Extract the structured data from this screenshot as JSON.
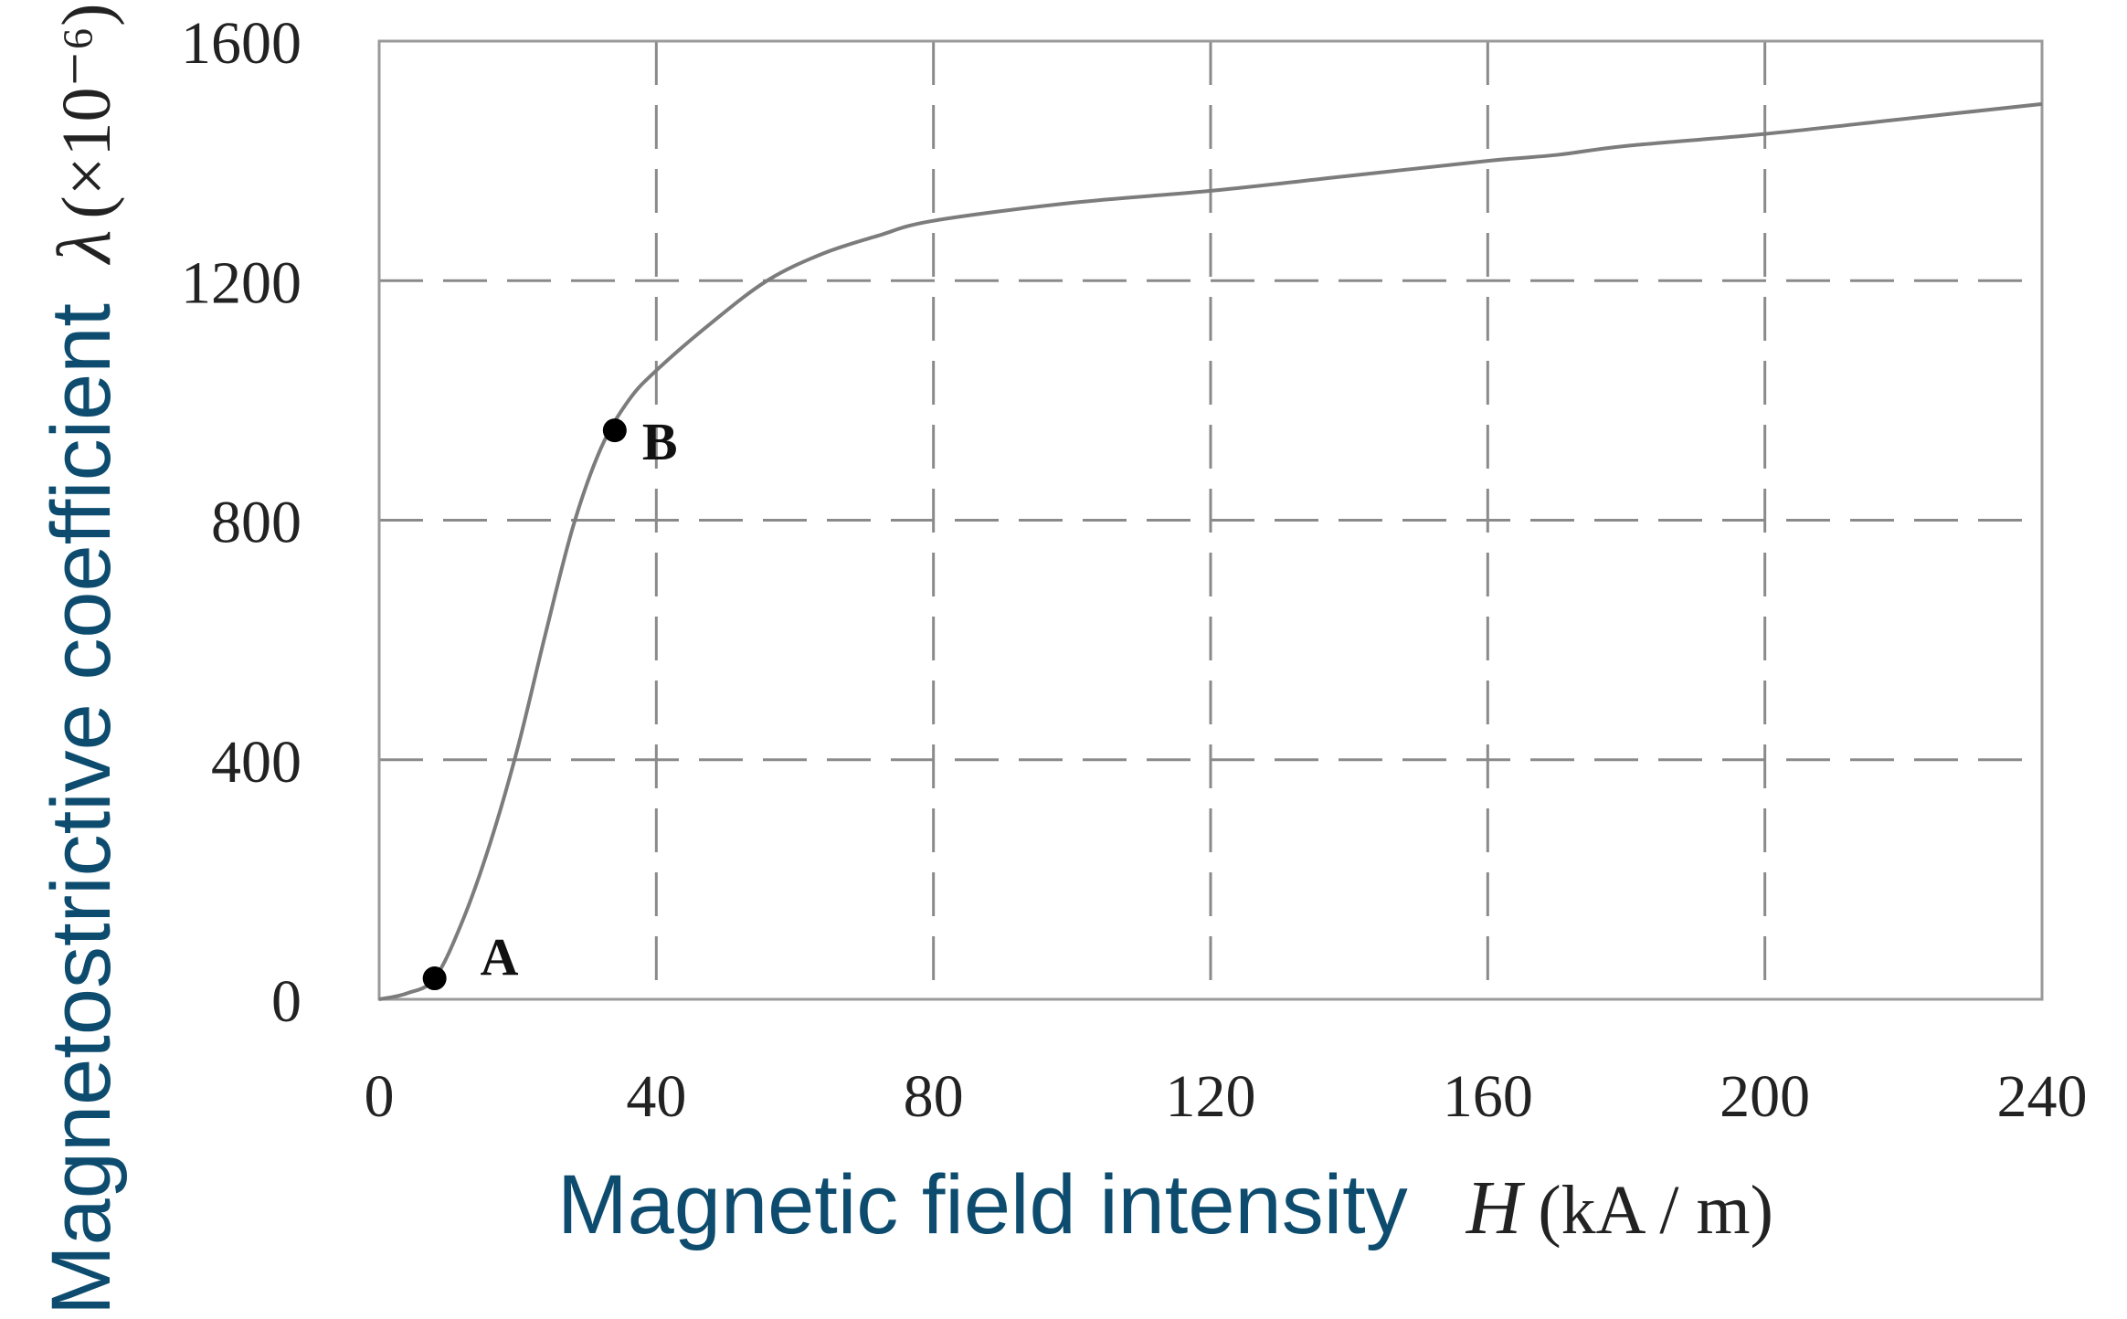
{
  "chart_data": {
    "type": "line",
    "xlabel": "Magnetic field intensity",
    "xlabel_var": "H",
    "xlabel_unit": "(kA / m)",
    "ylabel": "Magnetostrictive coefficient",
    "ylabel_var": "λ",
    "ylabel_unit": "(×10⁻⁶)",
    "xlim": [
      0,
      240
    ],
    "ylim": [
      0,
      1600
    ],
    "x_ticks": [
      0,
      40,
      80,
      120,
      160,
      200,
      240
    ],
    "y_ticks": [
      0,
      400,
      800,
      1200,
      1600
    ],
    "grid": true,
    "series": [
      {
        "x": [
          0,
          4,
          8,
          12,
          16,
          20,
          24,
          28,
          32,
          36,
          40,
          48,
          56,
          64,
          72,
          80,
          100,
          120,
          140,
          160,
          170,
          180,
          200,
          220,
          240
        ],
        "y": [
          0,
          10,
          35,
          130,
          260,
          420,
          610,
          790,
          920,
          1000,
          1050,
          1130,
          1200,
          1245,
          1275,
          1300,
          1330,
          1350,
          1375,
          1400,
          1410,
          1425,
          1445,
          1470,
          1495
        ]
      }
    ],
    "annotations": [
      {
        "label": "A",
        "x": 8,
        "y": 35
      },
      {
        "label": "B",
        "x": 34,
        "y": 950
      }
    ]
  },
  "colors": {
    "curve": "#7c7c7c",
    "grid": "#8a8a8a",
    "axis_label": "#0d4c6e"
  }
}
